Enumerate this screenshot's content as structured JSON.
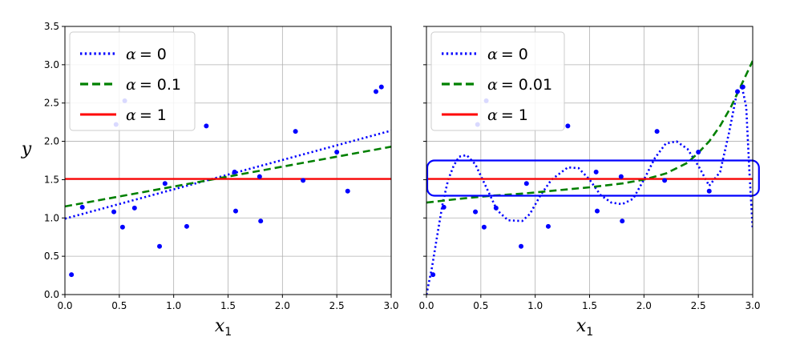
{
  "chart_data": [
    {
      "type": "scatter",
      "panel": "left",
      "xlabel": "x",
      "xlabel_sub": "1",
      "ylabel": "y",
      "xlim": [
        0,
        3.0
      ],
      "ylim": [
        0,
        3.5
      ],
      "xticks": [
        "0.0",
        "0.5",
        "1.0",
        "1.5",
        "2.0",
        "2.5",
        "3.0"
      ],
      "yticks": [
        "0.0",
        "0.5",
        "1.0",
        "1.5",
        "2.0",
        "2.5",
        "3.0",
        "3.5"
      ],
      "grid": true,
      "legend": "top-left",
      "points": {
        "color": "#0000ff",
        "x": [
          0.06,
          0.16,
          0.45,
          0.47,
          0.53,
          0.55,
          0.64,
          0.87,
          0.92,
          1.12,
          1.3,
          1.56,
          1.57,
          1.79,
          1.8,
          2.12,
          2.19,
          2.5,
          2.6,
          2.86,
          2.91
        ],
        "y": [
          0.26,
          1.14,
          1.08,
          2.22,
          0.88,
          2.53,
          1.13,
          0.63,
          1.45,
          0.89,
          2.2,
          1.6,
          1.09,
          1.54,
          0.96,
          2.13,
          1.49,
          1.86,
          1.35,
          2.65,
          2.71
        ]
      },
      "series": [
        {
          "label_prefix": "α",
          "label_value": "= 0",
          "color": "#0000ff",
          "style": "dotted",
          "x": [
            0,
            3.0
          ],
          "y": [
            0.99,
            2.14
          ]
        },
        {
          "label_prefix": "α",
          "label_value": "= 0.1",
          "color": "#008000",
          "style": "dashed",
          "x": [
            0,
            3.0
          ],
          "y": [
            1.15,
            1.93
          ]
        },
        {
          "label_prefix": "α",
          "label_value": "= 1",
          "color": "#ff0000",
          "style": "solid",
          "x": [
            0,
            3.0
          ],
          "y": [
            1.51,
            1.51
          ]
        }
      ]
    },
    {
      "type": "scatter",
      "panel": "right",
      "xlabel": "x",
      "xlabel_sub": "1",
      "ylabel": "",
      "xlim": [
        0,
        3.0
      ],
      "ylim": [
        0,
        3.5
      ],
      "xticks": [
        "0.0",
        "0.5",
        "1.0",
        "1.5",
        "2.0",
        "2.5",
        "3.0"
      ],
      "yticks": [],
      "grid": true,
      "legend": "top-left",
      "points": {
        "color": "#0000ff",
        "x": [
          0.06,
          0.16,
          0.45,
          0.47,
          0.53,
          0.55,
          0.64,
          0.87,
          0.92,
          1.12,
          1.3,
          1.56,
          1.57,
          1.79,
          1.8,
          2.12,
          2.19,
          2.5,
          2.6,
          2.86,
          2.91
        ],
        "y": [
          0.26,
          1.14,
          1.08,
          2.22,
          0.88,
          2.53,
          1.13,
          0.63,
          1.45,
          0.89,
          2.2,
          1.6,
          1.09,
          1.54,
          0.96,
          2.13,
          1.49,
          1.86,
          1.35,
          2.65,
          2.71
        ]
      },
      "series": [
        {
          "label_prefix": "α",
          "label_value": "= 0",
          "color": "#0000ff",
          "style": "dotted",
          "x": [
            0.0,
            0.05,
            0.1,
            0.15,
            0.2,
            0.25,
            0.3,
            0.37,
            0.45,
            0.55,
            0.65,
            0.75,
            0.88,
            0.95,
            1.05,
            1.15,
            1.3,
            1.4,
            1.5,
            1.6,
            1.7,
            1.8,
            1.9,
            2.0,
            2.1,
            2.2,
            2.3,
            2.4,
            2.5,
            2.6,
            2.7,
            2.78,
            2.85,
            2.9,
            2.94,
            2.97,
            3.0
          ],
          "y": [
            0.0,
            0.35,
            0.78,
            1.2,
            1.5,
            1.68,
            1.8,
            1.82,
            1.7,
            1.4,
            1.1,
            0.97,
            0.96,
            1.05,
            1.3,
            1.5,
            1.66,
            1.65,
            1.5,
            1.3,
            1.2,
            1.18,
            1.25,
            1.5,
            1.78,
            1.97,
            2.0,
            1.9,
            1.68,
            1.42,
            1.6,
            2.1,
            2.6,
            2.72,
            2.45,
            1.6,
            0.85
          ]
        },
        {
          "label_prefix": "α",
          "label_value": "= 0.01",
          "color": "#008000",
          "style": "dashed",
          "x": [
            0.0,
            0.3,
            0.6,
            0.9,
            1.2,
            1.5,
            1.8,
            2.0,
            2.2,
            2.4,
            2.5,
            2.6,
            2.7,
            2.8,
            2.9,
            3.0
          ],
          "y": [
            1.2,
            1.25,
            1.29,
            1.32,
            1.36,
            1.4,
            1.45,
            1.5,
            1.58,
            1.72,
            1.85,
            2.0,
            2.2,
            2.45,
            2.75,
            3.05
          ]
        },
        {
          "label_prefix": "α",
          "label_value": "= 1",
          "color": "#ff0000",
          "style": "solid",
          "x": [
            0,
            3.0
          ],
          "y": [
            1.51,
            1.51
          ]
        }
      ],
      "annotations": [
        {
          "type": "rounded-rectangle",
          "color": "#0000ff",
          "x": [
            0.0,
            3.05
          ],
          "y": [
            1.29,
            1.75
          ]
        }
      ]
    }
  ]
}
